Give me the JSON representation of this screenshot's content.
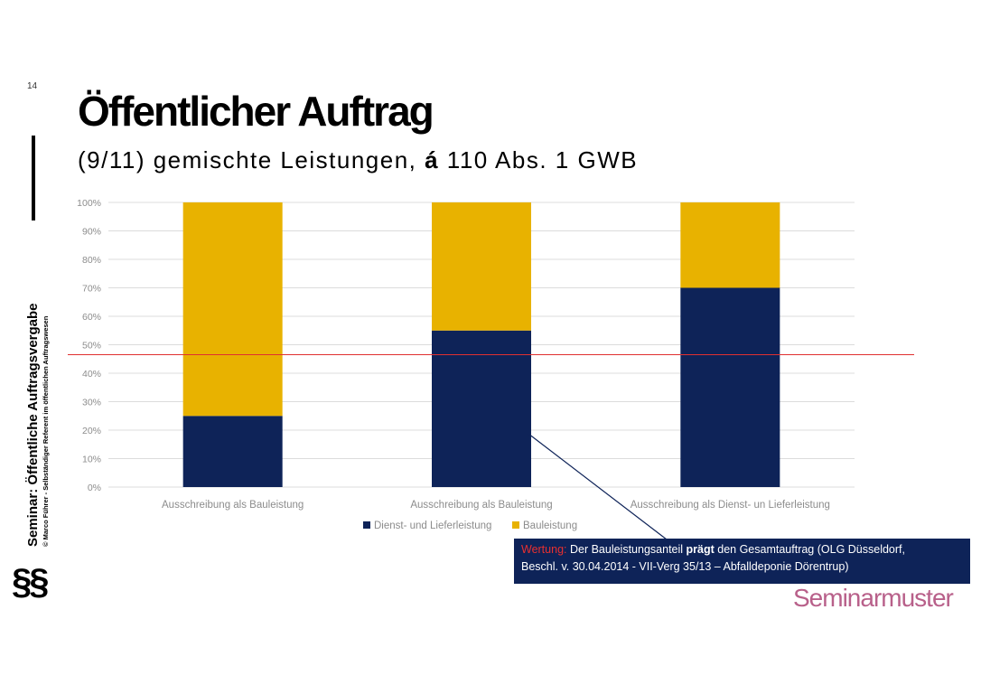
{
  "page_number": "14",
  "title": "Öffentlicher Auftrag",
  "subtitle": {
    "prefix": "(9/11) gemischte Leistungen, ",
    "symbol": "á",
    "suffix": " 110 Abs. 1 GWB"
  },
  "sidebar": {
    "seminar_title": "Seminar: Öffentliche Auftragsvergabe",
    "author": "© Marco Führer - Selbständiger Referent im öffentlichen Auftragswesen",
    "section_icon": "§§"
  },
  "colors": {
    "dienst": "#0e2358",
    "bau": "#e8b200",
    "reference_line": "#e03030",
    "brand": "#b8608a"
  },
  "chart_data": {
    "type": "bar",
    "stacked": true,
    "categories": [
      "Ausschreibung als Bauleistung",
      "Ausschreibung als Bauleistung",
      "Ausschreibung als Dienst- un Lieferleistung"
    ],
    "series": [
      {
        "name": "Dienst- und Lieferleistung",
        "values": [
          25,
          55,
          70
        ]
      },
      {
        "name": "Bauleistung",
        "values": [
          75,
          45,
          30
        ]
      }
    ],
    "ylim": [
      0,
      100
    ],
    "yticks": [
      "0%",
      "10%",
      "20%",
      "30%",
      "40%",
      "50%",
      "60%",
      "70%",
      "80%",
      "90%",
      "100%"
    ],
    "reference_line": 46.5,
    "grid": true,
    "legend_position": "bottom"
  },
  "callout": {
    "label": "Wertung:",
    "text_before": " Der Bauleistungsanteil ",
    "emphasis": "prägt",
    "text_after": " den Gesamtauftrag (OLG Düsseldorf,",
    "line2": "Beschl. v. 30.04.2014 - VII-Verg 35/13 – Abfalldeponie Dörentrup)"
  },
  "brand": "Seminarmuster"
}
